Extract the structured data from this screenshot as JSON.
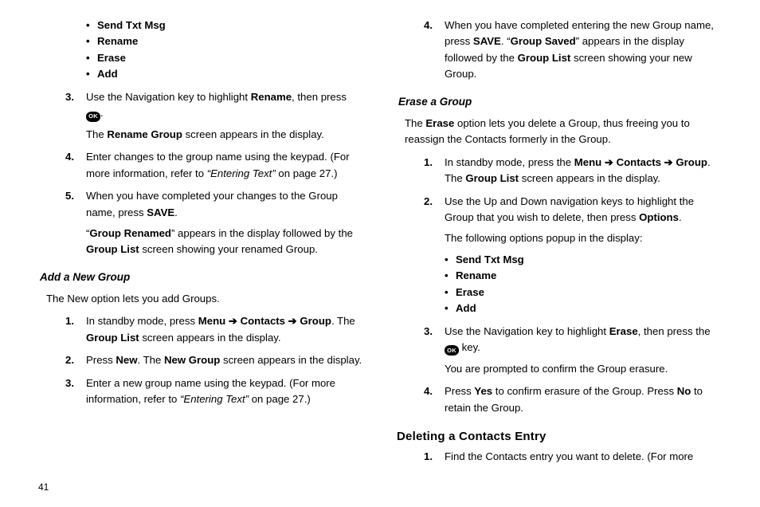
{
  "pageNumber": "41",
  "left": {
    "topBullets": [
      "Send Txt Msg",
      "Rename",
      "Erase",
      "Add"
    ],
    "step3a": "Use the Navigation key to highlight ",
    "step3b": "Rename",
    "step3c": ", then press ",
    "step3d": ".",
    "step3line2a": "The ",
    "step3line2b": "Rename Group",
    "step3line2c": " screen appears in the display.",
    "step4a": "Enter changes to the group name using the keypad. (For more information, refer to ",
    "step4b": "“Entering Text”",
    "step4c": "  on page 27.)",
    "step5a": "When you have completed your changes to the Group name, press ",
    "step5b": "SAVE",
    "step5c": ".",
    "step5line2a": "“",
    "step5line2b": "Group Renamed",
    "step5line2c": "” appears in the display followed by the ",
    "step5line2d": "Group List",
    "step5line2e": " screen showing your renamed Group.",
    "sectionTitle": "Add a New Group",
    "intro": "The New option lets you add Groups.",
    "a1a": "In standby mode, press ",
    "a1b": "Menu",
    "a1c": "Contacts",
    "a1d": "Group",
    "a1e": ". The ",
    "a1f": "Group List",
    "a1g": " screen appears in the display.",
    "a2a": "Press ",
    "a2b": "New",
    "a2c": ". The ",
    "a2d": "New Group",
    "a2e": " screen appears in the display.",
    "a3a": "Enter a new group name using the keypad. (For more information, refer to ",
    "a3b": "“Entering Text”",
    "a3c": "  on page 27.)"
  },
  "right": {
    "step4a": "When you have completed entering the new Group name, press ",
    "step4b": "SAVE",
    "step4c": ". “",
    "step4d": "Group Saved",
    "step4e": "” appears in the display followed by the ",
    "step4f": "Group List",
    "step4g": " screen showing your new Group.",
    "sectionTitle": "Erase a Group",
    "introa": "The ",
    "introb": "Erase",
    "introc": " option lets you delete a Group, thus freeing you to reassign the Contacts formerly in the Group.",
    "e1a": "In standby mode, press the ",
    "e1b": "Menu",
    "e1c": "Contacts",
    "e1d": "Group",
    "e1e": ". The ",
    "e1f": "Group List",
    "e1g": " screen appears in the display.",
    "e2a": "Use the Up and Down navigation keys to highlight the Group that you wish to delete, then press ",
    "e2b": "Options",
    "e2c": ".",
    "e2line2": "The following options popup in the display:",
    "e2bullets": [
      "Send Txt Msg",
      "Rename",
      "Erase",
      "Add"
    ],
    "e3a": "Use the Navigation key to highlight ",
    "e3b": "Erase",
    "e3c": ", then press the ",
    "e3d": " key.",
    "e3line2": "You are prompted to confirm the Group erasure.",
    "e4a": "Press ",
    "e4b": "Yes",
    "e4c": " to confirm erasure of the Group. Press ",
    "e4d": "No",
    "e4e": " to retain the Group.",
    "mainHeading": "Deleting a Contacts Entry",
    "d1": "Find the Contacts entry you want to delete. (For more"
  },
  "labels": {
    "n3": "3.",
    "n4": "4.",
    "n5": "5.",
    "n1": "1.",
    "n2": "2.",
    "arrow": " ➔ ",
    "ok": "OK",
    "bullet": "•"
  }
}
